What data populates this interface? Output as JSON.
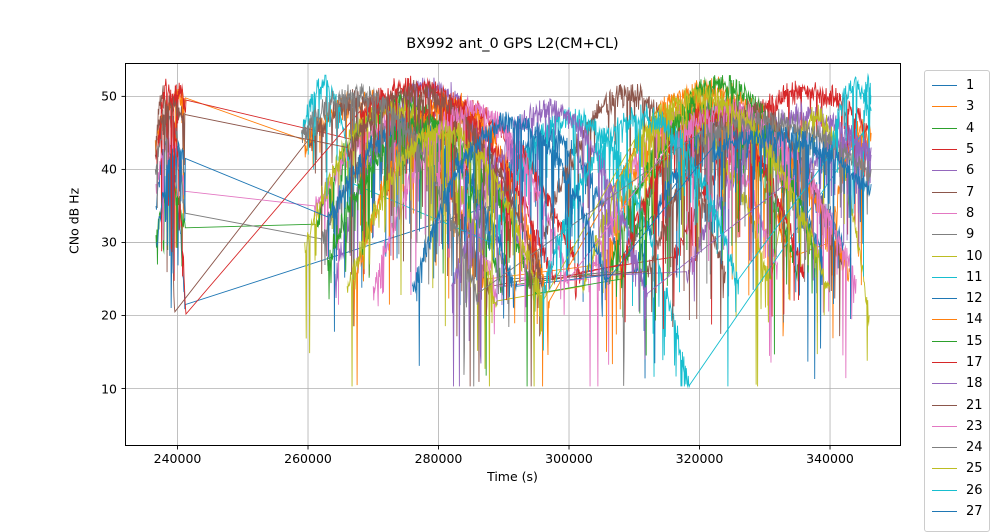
{
  "chart_data": {
    "type": "line",
    "title": "BX992 ant_0 GPS L2(CM+CL)",
    "xlabel": "Time (s)",
    "ylabel": "CNo dB Hz",
    "xlim": [
      232030,
      350800
    ],
    "ylim": [
      2.2,
      54.5
    ],
    "xticks": [
      240000,
      260000,
      280000,
      300000,
      320000,
      340000
    ],
    "yticks": [
      10,
      20,
      30,
      40,
      50
    ],
    "grid": true,
    "grid_color": "#b0b0b0",
    "spine_color": "#000000",
    "legend_position": "outside-right",
    "legend_note": "entries are GPS satellite PRN numbers; list is clipped at figure bottom after 26/27",
    "series_model": "segments are noisy satellite-pass arcs [t_start, t_end, cno_start, cno_peak, cno_end] in seconds / dB-Hz; consecutive segments of one PRN are joined by straight gap lines as matplotlib does",
    "series": [
      {
        "name": "1",
        "color": "#1f77b4",
        "segments": [
          [
            236700,
            241200,
            35,
            43,
            21.5
          ],
          [
            288000,
            308000,
            35,
            45,
            28
          ],
          [
            318000,
            342000,
            40,
            46,
            30
          ]
        ]
      },
      {
        "name": "3",
        "color": "#ff7f0e",
        "segments": [
          [
            236600,
            241200,
            44,
            50,
            49.8
          ],
          [
            259500,
            287500,
            44,
            48.5,
            25
          ],
          [
            305000,
            334000,
            27,
            50,
            28
          ],
          [
            340000,
            346300,
            30,
            44,
            45
          ]
        ]
      },
      {
        "name": "4",
        "color": "#2ca02c",
        "segments": [
          [
            236700,
            241200,
            31,
            38,
            32
          ],
          [
            261000,
            290000,
            32.5,
            50,
            24
          ],
          [
            306000,
            335000,
            26,
            49,
            27
          ]
        ]
      },
      {
        "name": "5",
        "color": "#d62728",
        "segments": [
          [
            236600,
            241300,
            42,
            50,
            49.5
          ],
          [
            272000,
            302000,
            43,
            48,
            26
          ],
          [
            316000,
            346000,
            28,
            50,
            46
          ]
        ]
      },
      {
        "name": "6",
        "color": "#9467bd",
        "segments": [
          [
            264000,
            294000,
            26,
            52,
            25
          ],
          [
            318000,
            346300,
            26,
            47,
            42
          ]
        ]
      },
      {
        "name": "7",
        "color": "#8c564b",
        "segments": [
          [
            236600,
            239600,
            42,
            49.5,
            20.5
          ],
          [
            260000,
            288000,
            44,
            48.5,
            24
          ],
          [
            294000,
            324000,
            25,
            51,
            26
          ]
        ]
      },
      {
        "name": "8",
        "color": "#e377c2",
        "segments": [
          [
            236700,
            241200,
            38,
            45,
            37
          ],
          [
            261000,
            289000,
            35,
            46,
            24
          ],
          [
            303000,
            332000,
            25,
            48,
            27
          ]
        ]
      },
      {
        "name": "9",
        "color": "#7f7f7f",
        "segments": [
          [
            236600,
            241200,
            40,
            48,
            34
          ],
          [
            262000,
            291000,
            30.5,
            47,
            25
          ],
          [
            308000,
            337000,
            26,
            49,
            30
          ]
        ]
      },
      {
        "name": "10",
        "color": "#bcbd22",
        "segments": [
          [
            259500,
            289000,
            30,
            49,
            22
          ],
          [
            302000,
            331000,
            24,
            48,
            25
          ],
          [
            334000,
            346000,
            42,
            46,
            20
          ]
        ]
      },
      {
        "name": "11",
        "color": "#17becf",
        "segments": [
          [
            259000,
            267000,
            45,
            52.5,
            38
          ],
          [
            288000,
            318500,
            30,
            47,
            10.5
          ],
          [
            345000,
            346300,
            45,
            52.5,
            50
          ]
        ]
      },
      {
        "name": "12",
        "color": "#1f77b4",
        "segments": [
          [
            236800,
            241200,
            30,
            42,
            41.5
          ],
          [
            263000,
            292000,
            33.5,
            46,
            24
          ],
          [
            310000,
            339000,
            26,
            48,
            28
          ]
        ]
      },
      {
        "name": "14",
        "color": "#ff7f0e",
        "segments": [
          [
            267000,
            297000,
            25,
            50,
            22
          ],
          [
            314000,
            343000,
            49,
            49,
            26
          ]
        ]
      },
      {
        "name": "15",
        "color": "#2ca02c",
        "segments": [
          [
            263000,
            295000,
            28,
            47,
            23
          ],
          [
            308000,
            338000,
            25,
            52.5,
            28
          ]
        ]
      },
      {
        "name": "17",
        "color": "#d62728",
        "segments": [
          [
            237000,
            241300,
            44,
            50,
            20.2
          ],
          [
            268000,
            298000,
            48,
            49.5,
            25
          ],
          [
            308000,
            336000,
            27,
            48,
            26
          ]
        ]
      },
      {
        "name": "18",
        "color": "#9467bd",
        "segments": [
          [
            282000,
            312000,
            24,
            49,
            23
          ],
          [
            336000,
            346300,
            40,
            44,
            43
          ]
        ]
      },
      {
        "name": "21",
        "color": "#8c564b",
        "segments": [
          [
            237000,
            241200,
            46,
            49.5,
            47.5
          ],
          [
            266000,
            296000,
            43,
            50,
            25
          ],
          [
            312000,
            342000,
            26,
            49,
            27
          ]
        ]
      },
      {
        "name": "23",
        "color": "#e377c2",
        "segments": [
          [
            270000,
            300000,
            24,
            49,
            25
          ],
          [
            316000,
            344000,
            44,
            47,
            25
          ]
        ]
      },
      {
        "name": "24",
        "color": "#7f7f7f",
        "segments": [
          [
            259000,
            286000,
            45,
            49,
            23
          ],
          [
            320000,
            346300,
            45,
            47,
            40
          ]
        ]
      },
      {
        "name": "25",
        "color": "#bcbd22",
        "segments": [
          [
            266000,
            296000,
            24,
            46,
            22
          ],
          [
            310000,
            340000,
            44,
            49,
            24
          ]
        ]
      },
      {
        "name": "26",
        "color": "#17becf",
        "segments": [
          [
            296000,
            326000,
            24,
            48,
            25
          ],
          [
            340000,
            346300,
            42,
            52,
            48
          ]
        ]
      },
      {
        "name": "27",
        "color": "#1f77b4",
        "segments": [
          [
            276000,
            306000,
            24,
            47,
            25
          ],
          [
            322000,
            346300,
            43,
            45,
            38
          ]
        ]
      }
    ]
  }
}
